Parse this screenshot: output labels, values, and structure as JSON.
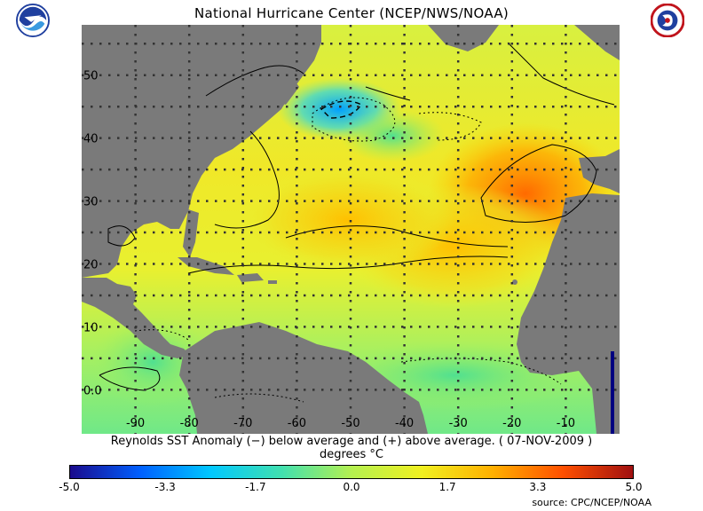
{
  "header": {
    "title": "National Hurricane Center (NCEP/NWS/NOAA)"
  },
  "logos": {
    "left": "noaa-logo",
    "right": "nws-logo"
  },
  "map": {
    "lon_labels": [
      "-90",
      "-80",
      "-70",
      "-60",
      "-50",
      "-40",
      "-30",
      "-20",
      "-10"
    ],
    "lat_labels": [
      "50",
      "40",
      "30",
      "20",
      "10",
      "0.0"
    ],
    "lon_range": [
      -100,
      0
    ],
    "lat_range": [
      -7,
      58
    ],
    "land_color": "#7a7a7a",
    "grid_color": "#333333"
  },
  "caption": {
    "line1": "Reynolds SST Anomaly (−) below average and (+) above average. ( 07-NOV-2009 )",
    "line2": "degrees °C"
  },
  "colorbar": {
    "ticks": [
      "-5.0",
      "-3.3",
      "-1.7",
      "0.0",
      "1.7",
      "3.3",
      "5.0"
    ],
    "range": [
      -5.0,
      5.0
    ],
    "colors": [
      "#1a0a8c",
      "#0060ff",
      "#00c8ff",
      "#40e0b0",
      "#b4f050",
      "#f0f020",
      "#ffb000",
      "#ff5000",
      "#a01010"
    ]
  },
  "source": "source:  CPC/NCEP/NOAA"
}
